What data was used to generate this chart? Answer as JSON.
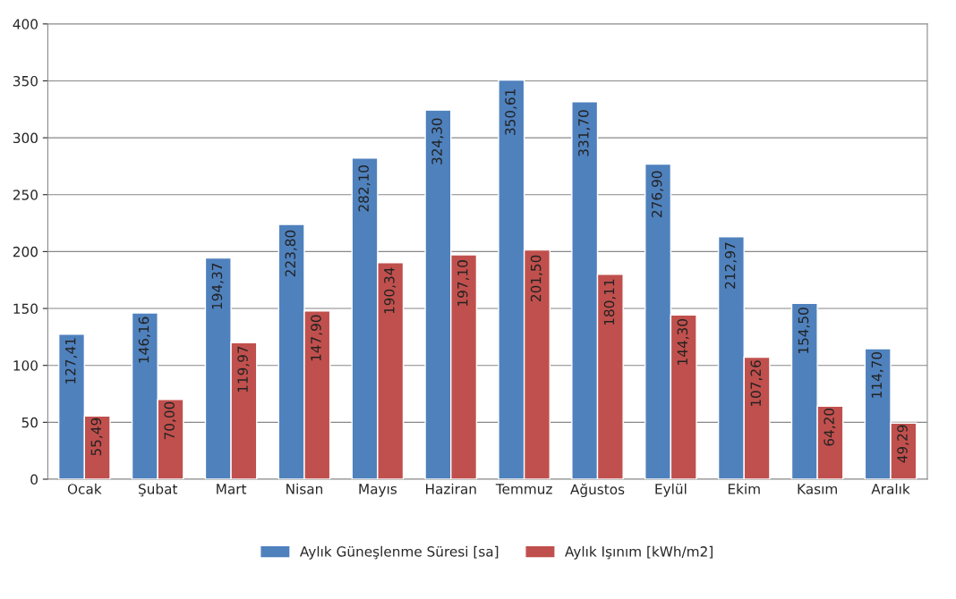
{
  "chart_data": {
    "type": "bar",
    "categories": [
      "Ocak",
      "Şubat",
      "Mart",
      "Nisan",
      "Mayıs",
      "Haziran",
      "Temmuz",
      "Ağustos",
      "Eylül",
      "Ekim",
      "Kasım",
      "Aralık"
    ],
    "series": [
      {
        "name": "Aylık Güneşlenme Süresi [sa]",
        "color": "#4f81bd",
        "values": [
          127.41,
          146.16,
          194.37,
          223.8,
          282.1,
          324.3,
          350.61,
          331.7,
          276.9,
          212.97,
          154.5,
          114.7
        ],
        "value_labels": [
          "127,41",
          "146,16",
          "194,37",
          "223,80",
          "282,10",
          "324,30",
          "350,61",
          "331,70",
          "276,90",
          "212,97",
          "154,50",
          "114,70"
        ]
      },
      {
        "name": "Aylık Işınım [kWh/m2]",
        "color": "#c0504d",
        "values": [
          55.49,
          70.0,
          119.97,
          147.9,
          190.34,
          197.1,
          201.5,
          180.11,
          144.3,
          107.26,
          64.2,
          49.29
        ],
        "value_labels": [
          "55,49",
          "70,00",
          "119,97",
          "147,90",
          "190,34",
          "197,10",
          "201,50",
          "180,11",
          "144,30",
          "107,26",
          "64,20",
          "49,29"
        ]
      }
    ],
    "ylim": [
      0,
      400
    ],
    "yticks": [
      0,
      50,
      100,
      150,
      200,
      250,
      300,
      350,
      400
    ],
    "grid": "y",
    "legend": "bottom"
  }
}
